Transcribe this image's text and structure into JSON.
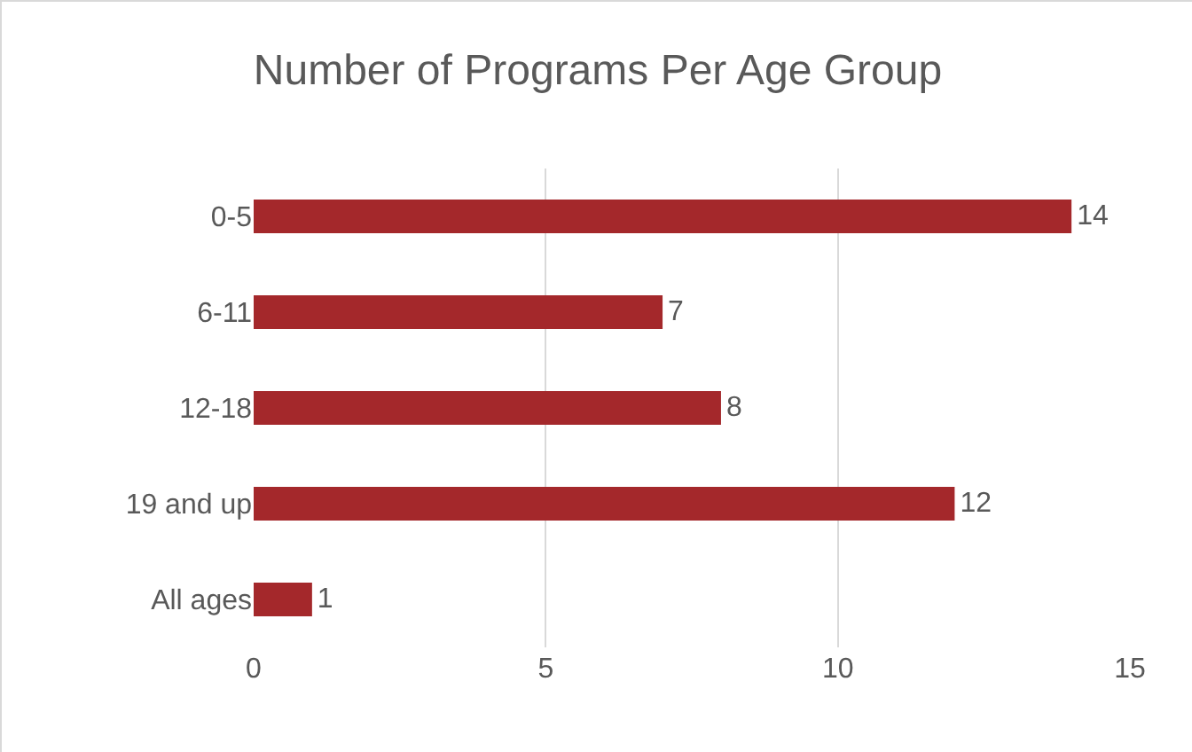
{
  "chart_data": {
    "type": "bar",
    "title": "Number of Programs Per Age Group",
    "orientation": "horizontal",
    "categories": [
      "0-5",
      "6-11",
      "12-18",
      "19 and up",
      "All ages"
    ],
    "values": [
      14,
      7,
      8,
      12,
      1
    ],
    "color": "#a4282b",
    "xlim": [
      0,
      15
    ],
    "xticks": [
      0,
      5,
      10,
      15
    ],
    "grid": "x",
    "data_labels": true
  }
}
